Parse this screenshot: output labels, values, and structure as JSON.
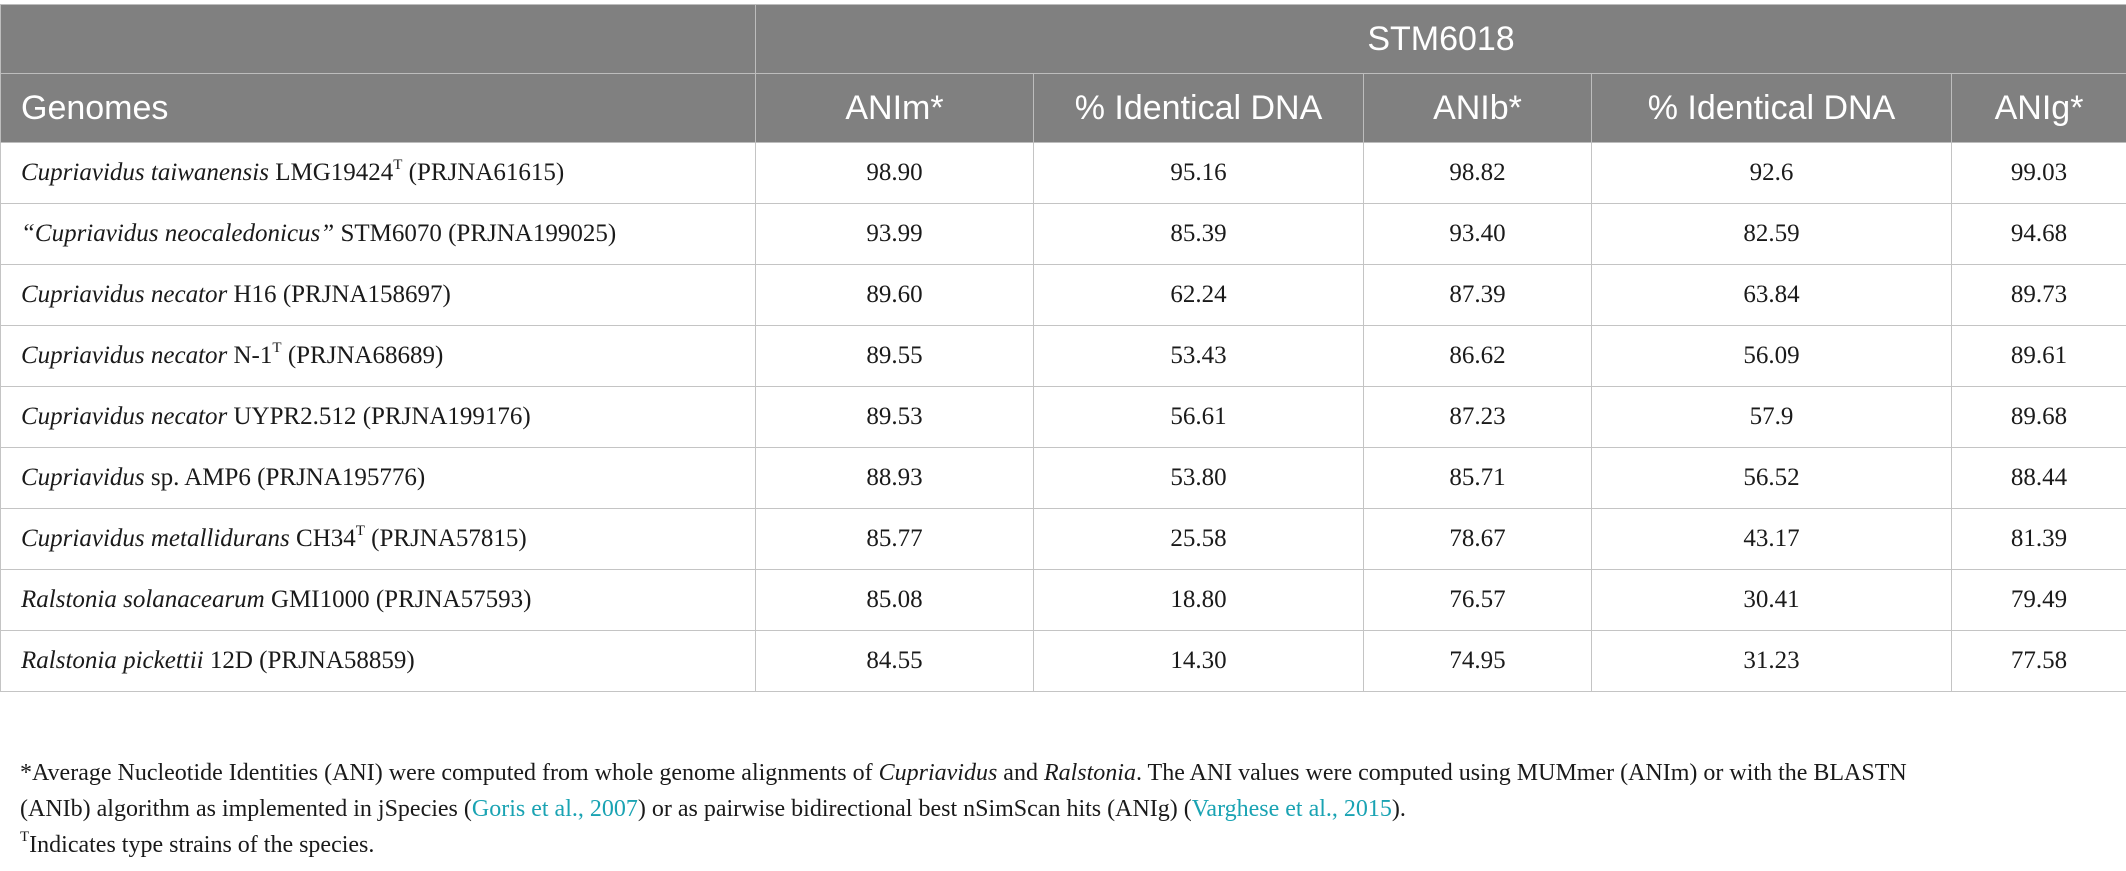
{
  "header": {
    "group_label": "STM6018",
    "columns": [
      "Genomes",
      "ANIm*",
      "% Identical DNA",
      "ANIb*",
      "% Identical DNA",
      "ANIg*"
    ]
  },
  "rows": [
    {
      "genus": "Cupriavidus taiwanensis",
      "rest": " LMG19424",
      "sup": "T",
      "project": " (PRJNA61615)",
      "values": [
        "98.90",
        "95.16",
        "98.82",
        "92.6",
        "99.03"
      ]
    },
    {
      "genus": "“Cupriavidus neocaledonicus”",
      "rest": " STM6070",
      "sup": "",
      "project": " (PRJNA199025)",
      "values": [
        "93.99",
        "85.39",
        "93.40",
        "82.59",
        "94.68"
      ]
    },
    {
      "genus": "Cupriavidus necator",
      "rest": " H16",
      "sup": "",
      "project": " (PRJNA158697)",
      "values": [
        "89.60",
        "62.24",
        "87.39",
        "63.84",
        "89.73"
      ]
    },
    {
      "genus": "Cupriavidus necator",
      "rest": " N-1",
      "sup": "T",
      "project": " (PRJNA68689)",
      "values": [
        "89.55",
        "53.43",
        "86.62",
        "56.09",
        "89.61"
      ]
    },
    {
      "genus": "Cupriavidus necator",
      "rest": " UYPR2.512",
      "sup": "",
      "project": " (PRJNA199176)",
      "values": [
        "89.53",
        "56.61",
        "87.23",
        "57.9",
        "89.68"
      ]
    },
    {
      "genus": "Cupriavidus",
      "rest": " sp. AMP6",
      "sup": "",
      "project": " (PRJNA195776)",
      "values": [
        "88.93",
        "53.80",
        "85.71",
        "56.52",
        "88.44"
      ]
    },
    {
      "genus": "Cupriavidus metallidurans",
      "rest": " CH34",
      "sup": "T",
      "project": " (PRJNA57815)",
      "values": [
        "85.77",
        "25.58",
        "78.67",
        "43.17",
        "81.39"
      ]
    },
    {
      "genus": "Ralstonia solanacearum",
      "rest": " GMI1000",
      "sup": "",
      "project": " (PRJNA57593)",
      "values": [
        "85.08",
        "18.80",
        "76.57",
        "30.41",
        "79.49"
      ]
    },
    {
      "genus": "Ralstonia pickettii",
      "rest": " 12D",
      "sup": "",
      "project": " (PRJNA58859)",
      "values": [
        "84.55",
        "14.30",
        "74.95",
        "31.23",
        "77.58"
      ]
    }
  ],
  "footnote": {
    "l1a": "*Average Nucleotide Identities (ANI) were computed from whole genome alignments of ",
    "l1b": "Cupriavidus",
    "l1c": " and ",
    "l1d": "Ralstonia",
    "l1e": ". The ANI values were computed using MUMmer (ANIm) or with the BLASTN",
    "l2a": "(ANIb) algorithm as implemented in jSpecies (",
    "l2b": "Goris et al., 2007",
    "l2c": ") or as pairwise bidirectional best nSimScan hits (ANIg) (",
    "l2d": "Varghese et al., 2015",
    "l2e": ").",
    "l3a": "T",
    "l3b": "Indicates type strains of the species."
  },
  "colors": {
    "header_bg": "#808080",
    "header_text": "#ffffff",
    "link": "#1aa3b3",
    "grid": "#c4c4c4"
  }
}
